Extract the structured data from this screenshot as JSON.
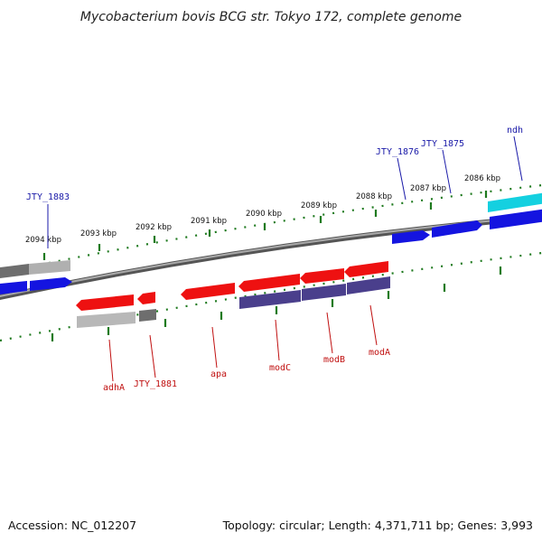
{
  "title": "Mycobacterium bovis BCG str. Tokyo 172, complete genome",
  "footer": {
    "accession": "Accession: NC_012207",
    "summary": "Topology: circular; Length: 4,371,711 bp; Genes: 3,993"
  },
  "colors": {
    "backbone": "#7a7a7a",
    "tick": "#1f7a1f",
    "gene_red": "#ee1111",
    "gene_blue": "#1414e0",
    "gene_purple": "#4a3f8c",
    "gene_gray": "#a8a8a8",
    "gene_dark_gray": "#6e6e6e",
    "gene_cyan": "#14d0e0",
    "label_blue": "#1a1aa8",
    "label_red": "#c01010"
  },
  "scale": {
    "labels": [
      {
        "name": "scale-label-2094",
        "text": "2094 kbp"
      },
      {
        "name": "scale-label-2093",
        "text": "2093 kbp"
      },
      {
        "name": "scale-label-2092",
        "text": "2092 kbp"
      },
      {
        "name": "scale-label-2091",
        "text": "2091 kbp"
      },
      {
        "name": "scale-label-2090",
        "text": "2090 kbp"
      },
      {
        "name": "scale-label-2089",
        "text": "2089 kbp"
      },
      {
        "name": "scale-label-2088",
        "text": "2088 kbp"
      },
      {
        "name": "scale-label-2087",
        "text": "2087 kbp"
      },
      {
        "name": "scale-label-2086",
        "text": "2086 kbp"
      }
    ]
  },
  "genes": {
    "outer_labels": [
      {
        "name": "gene-label-jty-1883",
        "text": "JTY_1883"
      },
      {
        "name": "gene-label-jty-1876",
        "text": "JTY_1876"
      },
      {
        "name": "gene-label-jty-1875",
        "text": "JTY_1875"
      },
      {
        "name": "gene-label-ndh",
        "text": "ndh"
      }
    ],
    "inner_labels": [
      {
        "name": "gene-label-adha",
        "text": "adhA"
      },
      {
        "name": "gene-label-jty-1881",
        "text": "JTY_1881"
      },
      {
        "name": "gene-label-apa",
        "text": "apa"
      },
      {
        "name": "gene-label-modc",
        "text": "modC"
      },
      {
        "name": "gene-label-modb",
        "text": "modB"
      },
      {
        "name": "gene-label-moda",
        "text": "modA"
      }
    ]
  }
}
